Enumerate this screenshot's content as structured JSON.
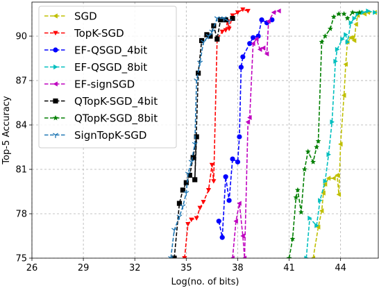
{
  "chart_data": {
    "type": "line",
    "title": "",
    "xlabel": "Log(no. of bits)",
    "ylabel": "Top-5 Accuracy",
    "xlim": [
      26,
      46.2
    ],
    "ylim": [
      75,
      92.3
    ],
    "xticks": [
      26,
      29,
      32,
      35,
      38,
      41,
      44
    ],
    "yticks": [
      75,
      78,
      81,
      84,
      87,
      90
    ],
    "grid": true,
    "legend": "top-left",
    "series": [
      {
        "name": "SGD",
        "color": "#bfbf00",
        "marker": "triangle-left",
        "points": [
          [
            42.4,
            75
          ],
          [
            42.7,
            77.1
          ],
          [
            42.9,
            78.2
          ],
          [
            43.0,
            79.4
          ],
          [
            43.1,
            80.0
          ],
          [
            43.3,
            80.4
          ],
          [
            43.6,
            80.4
          ],
          [
            43.8,
            80.6
          ],
          [
            43.9,
            79.3
          ],
          [
            44.0,
            82.7
          ],
          [
            44.2,
            86.0
          ],
          [
            44.3,
            88.1
          ],
          [
            44.4,
            89.6
          ],
          [
            44.6,
            89.9
          ],
          [
            44.7,
            89.9
          ],
          [
            44.8,
            89.7
          ],
          [
            44.9,
            90.8
          ],
          [
            45.0,
            91.4
          ],
          [
            45.2,
            91.6
          ],
          [
            45.4,
            91.5
          ],
          [
            45.6,
            91.6
          ],
          [
            46.0,
            91.6
          ]
        ]
      },
      {
        "name": "TopK-SGD",
        "color": "#ff0000",
        "marker": "triangle-down",
        "points": [
          [
            34.9,
            75
          ],
          [
            35.1,
            77.3
          ],
          [
            35.3,
            77.6
          ],
          [
            35.6,
            77.7
          ],
          [
            35.8,
            78.4
          ],
          [
            36.0,
            78.8
          ],
          [
            36.3,
            79.6
          ],
          [
            36.5,
            81.3
          ],
          [
            36.6,
            80.2
          ],
          [
            36.8,
            89.8
          ],
          [
            37.1,
            90.3
          ],
          [
            37.3,
            90.4
          ],
          [
            37.4,
            91.0
          ],
          [
            37.5,
            90.5
          ],
          [
            37.7,
            91.4
          ],
          [
            38.0,
            91.6
          ],
          [
            38.3,
            91.8
          ],
          [
            38.6,
            91.7
          ]
        ]
      },
      {
        "name": "EF-QSGD_4bit",
        "color": "#0000ff",
        "marker": "circle",
        "points": [
          [
            36.9,
            77.5
          ],
          [
            37.1,
            76.4
          ],
          [
            37.3,
            80.5
          ],
          [
            37.5,
            78.9
          ],
          [
            37.7,
            81.7
          ],
          [
            38.0,
            81.5
          ],
          [
            38.1,
            83.2
          ],
          [
            38.2,
            87.9
          ],
          [
            38.3,
            88.6
          ],
          [
            38.7,
            89.5
          ],
          [
            38.9,
            89.9
          ],
          [
            39.2,
            90.0
          ],
          [
            39.4,
            91.1
          ],
          [
            39.7,
            90.9
          ],
          [
            40.0,
            91.1
          ]
        ]
      },
      {
        "name": "EF-QSGD_8bit",
        "color": "#00bfbf",
        "marker": "triangle-right",
        "points": [
          [
            42.0,
            75
          ],
          [
            42.2,
            77.7
          ],
          [
            42.6,
            77.2
          ],
          [
            42.8,
            78.9
          ],
          [
            43.1,
            80.2
          ],
          [
            43.3,
            82.0
          ],
          [
            43.5,
            84.2
          ],
          [
            43.7,
            88.3
          ],
          [
            43.8,
            89.1
          ],
          [
            44.1,
            89.8
          ],
          [
            44.3,
            90.1
          ],
          [
            44.4,
            89.6
          ],
          [
            44.6,
            90.9
          ],
          [
            44.8,
            91.2
          ],
          [
            45.0,
            91.5
          ],
          [
            45.3,
            91.6
          ],
          [
            45.6,
            91.7
          ],
          [
            46.0,
            91.6
          ]
        ]
      },
      {
        "name": "EF-signSGD",
        "color": "#bf00bf",
        "marker": "triangle-left",
        "points": [
          [
            37.7,
            75
          ],
          [
            37.9,
            77.5
          ],
          [
            38.1,
            78.7
          ],
          [
            38.3,
            76.5
          ],
          [
            38.4,
            75
          ],
          [
            38.6,
            84.2
          ],
          [
            38.7,
            84.5
          ],
          [
            38.9,
            89.5
          ],
          [
            39.1,
            89.8
          ],
          [
            39.3,
            89.1
          ],
          [
            39.5,
            89.2
          ],
          [
            39.7,
            88.8
          ],
          [
            39.8,
            91.0
          ],
          [
            40.1,
            91.6
          ],
          [
            40.4,
            91.7
          ]
        ]
      },
      {
        "name": "QTopK-SGD_4bit",
        "color": "#000000",
        "marker": "square",
        "points": [
          [
            34.3,
            75
          ],
          [
            34.6,
            78.7
          ],
          [
            34.8,
            79.6
          ],
          [
            35.0,
            80.1
          ],
          [
            35.2,
            80.6
          ],
          [
            35.4,
            81.8
          ],
          [
            35.6,
            83.2
          ],
          [
            35.5,
            80.3
          ],
          [
            35.7,
            87.5
          ],
          [
            35.9,
            89.7
          ],
          [
            36.2,
            90.1
          ],
          [
            36.4,
            90.0
          ],
          [
            36.6,
            90.7
          ],
          [
            36.8,
            89.8
          ],
          [
            37.0,
            91.1
          ],
          [
            37.3,
            91.1
          ],
          [
            37.7,
            91.2
          ]
        ]
      },
      {
        "name": "QTopK-SGD_8bit",
        "color": "#007f00",
        "marker": "star",
        "points": [
          [
            41.0,
            75
          ],
          [
            41.2,
            76.3
          ],
          [
            41.4,
            79.1
          ],
          [
            41.5,
            79.6
          ],
          [
            41.7,
            78.1
          ],
          [
            41.9,
            81.0
          ],
          [
            42.1,
            82.2
          ],
          [
            42.4,
            81.5
          ],
          [
            42.6,
            82.5
          ],
          [
            42.7,
            82.9
          ],
          [
            42.9,
            89.6
          ],
          [
            43.1,
            90.0
          ],
          [
            43.4,
            90.5
          ],
          [
            43.6,
            91.3
          ],
          [
            43.9,
            91.5
          ],
          [
            44.2,
            91.5
          ],
          [
            44.4,
            91.2
          ],
          [
            44.7,
            91.6
          ],
          [
            45.1,
            91.6
          ]
        ]
      },
      {
        "name": "SignTopK-SGD",
        "color": "#1f77b4",
        "marker": "tri-down",
        "points": [
          [
            34.1,
            75
          ],
          [
            34.3,
            76.9
          ],
          [
            34.6,
            77.8
          ],
          [
            34.8,
            78.5
          ],
          [
            35.0,
            79.4
          ],
          [
            35.1,
            80.7
          ],
          [
            35.3,
            81.5
          ],
          [
            35.5,
            82.7
          ],
          [
            35.6,
            87.0
          ],
          [
            35.8,
            88.2
          ],
          [
            36.0,
            89.6
          ],
          [
            36.3,
            90.0
          ],
          [
            36.5,
            90.3
          ],
          [
            36.8,
            91.2
          ],
          [
            37.2,
            91.2
          ],
          [
            37.5,
            91.0
          ]
        ]
      }
    ]
  }
}
